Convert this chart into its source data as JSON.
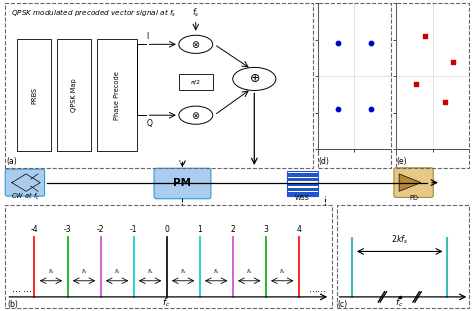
{
  "title": "QPSK modulated precoded vector signal at $f_s$",
  "bg_color": "#ffffff",
  "dashed_border_color": "#666666",
  "panel_b_labels": [
    "-4",
    "-3",
    "-2",
    "-1",
    "0",
    "1",
    "2",
    "3",
    "4"
  ],
  "panel_b_positions": [
    -4,
    -3,
    -2,
    -1,
    0,
    1,
    2,
    3,
    4
  ],
  "panel_b_colors": [
    "#ff0000",
    "#00aa00",
    "#cc44cc",
    "#00cccc",
    "#000000",
    "#00cccc",
    "#cc44cc",
    "#00aa00",
    "#ff0000"
  ],
  "panel_b_xlabel": "$f_c$",
  "constellation_d_points": [
    [
      -0.45,
      0.45
    ],
    [
      0.45,
      0.45
    ],
    [
      -0.45,
      -0.45
    ],
    [
      0.45,
      -0.45
    ]
  ],
  "constellation_d_color": "#0000cc",
  "constellation_e_points": [
    [
      -0.2,
      0.55
    ],
    [
      0.55,
      0.2
    ],
    [
      0.35,
      -0.35
    ],
    [
      -0.45,
      -0.1
    ]
  ],
  "constellation_e_color": "#cc0000",
  "panel_c_span_label": "$2kf_s$",
  "panel_c_xlabel": "$f_c$",
  "laser_color_face": "#aaccee",
  "laser_color_edge": "#3399cc",
  "pm_color_face": "#aaccee",
  "pm_color_edge": "#3399cc",
  "wss_color": "#2255cc",
  "pd_color_face": "#e8c888",
  "pd_color_edge": "#aa8833"
}
